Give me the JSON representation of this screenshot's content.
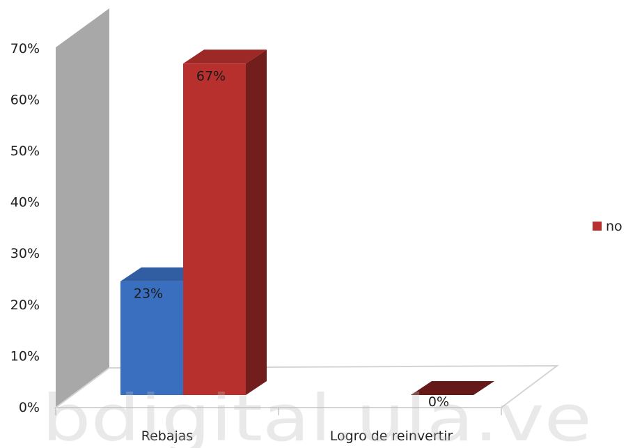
{
  "chart_data": {
    "type": "bar",
    "categories": [
      "Rebajas",
      "Logro de reinvertir"
    ],
    "series": [
      {
        "color": "#3a6fbf",
        "values": [
          23,
          null
        ]
      },
      {
        "name": "no",
        "color": "#b8302d",
        "values": [
          67,
          0
        ]
      }
    ],
    "data_labels": [
      {
        "series": 0,
        "category": 0,
        "text": "23%"
      },
      {
        "series": 1,
        "category": 0,
        "text": "67%"
      },
      {
        "series": 1,
        "category": 1,
        "text": "0%"
      }
    ],
    "yticks": [
      "0%",
      "10%",
      "20%",
      "30%",
      "40%",
      "50%",
      "60%",
      "70%"
    ],
    "ylim": [
      0,
      70
    ],
    "unit": "%",
    "legend": {
      "placement": "right",
      "entries": [
        "no"
      ]
    },
    "three_d": true
  },
  "watermark": "bdigital.ula.ve"
}
